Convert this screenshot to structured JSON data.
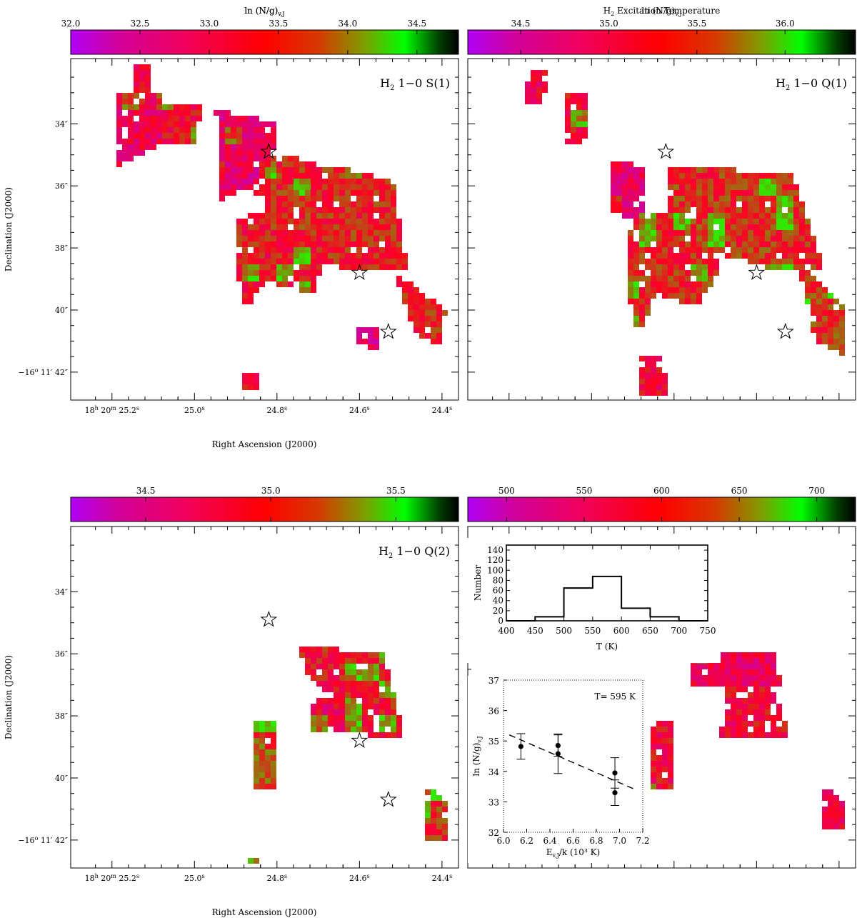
{
  "colors": {
    "scale": [
      "#b000f5",
      "#d0009a",
      "#f2005a",
      "#ff0000",
      "#d63a00",
      "#7ca000",
      "#00ff00",
      "#004000",
      "#000000"
    ],
    "pixel_low": "#c000c8",
    "pixel_mid": "#ff0020",
    "pixel_high": "#30e800",
    "frame": "#000000"
  },
  "axes": {
    "ra_label": "Right Ascension (J2000)",
    "dec_label": "Declination (J2000)",
    "ra_ticks": [
      {
        "h": "18",
        "m": "20",
        "s": "25.2"
      },
      {
        "h": "",
        "m": "",
        "s": "25.0"
      },
      {
        "h": "",
        "m": "",
        "s": "24.8"
      },
      {
        "h": "",
        "m": "",
        "s": "24.6"
      },
      {
        "h": "",
        "m": "",
        "s": "24.4"
      }
    ],
    "dec_ticks": [
      {
        "deg": "",
        "arcmin": "",
        "arcsec": "34″"
      },
      {
        "deg": "",
        "arcmin": "",
        "arcsec": "36″"
      },
      {
        "deg": "",
        "arcmin": "",
        "arcsec": "38″"
      },
      {
        "deg": "",
        "arcmin": "",
        "arcsec": "40″"
      },
      {
        "deg": "−16",
        "arcmin": "11′",
        "arcsec": "42″"
      }
    ]
  },
  "chart_data": [
    {
      "type": "heatmap",
      "label": "H2 1-0 S(1)",
      "label_main": "H",
      "label_sub": "2",
      "label_rest": " 1−0 S(1)",
      "colorbar": {
        "label": "ln (N/g)",
        "label_sub": "v,J",
        "min": 32.0,
        "max": 34.8,
        "ticks": [
          "32.0",
          "32.5",
          "33.0",
          "33.5",
          "34.0",
          "34.5"
        ]
      },
      "stars": [
        {
          "ra": 24.82,
          "dec": 34.9
        },
        {
          "ra": 24.6,
          "dec": 38.8
        },
        {
          "ra": 24.53,
          "dec": 40.7
        }
      ],
      "show_ra_labels": true,
      "show_dec_labels": true
    },
    {
      "type": "heatmap",
      "label": "H2 1-0 Q(1)",
      "label_main": "H",
      "label_sub": "2",
      "label_rest": " 1−0 Q(1)",
      "colorbar": {
        "label": "ln (N/g)",
        "label_sub": "v,J",
        "min": 34.2,
        "max": 36.4,
        "ticks": [
          "34.5",
          "35.0",
          "35.5",
          "36.0"
        ]
      },
      "stars": [
        {
          "ra": 24.82,
          "dec": 34.9
        },
        {
          "ra": 24.6,
          "dec": 38.8
        },
        {
          "ra": 24.53,
          "dec": 40.7
        }
      ],
      "show_ra_labels": false,
      "show_dec_labels": false
    },
    {
      "type": "heatmap",
      "label": "H2 1-0 Q(2)",
      "label_main": "H",
      "label_sub": "2",
      "label_rest": " 1−0 Q(2)",
      "colorbar": {
        "label": "ln (N/g)",
        "label_sub": "v,J",
        "min": 34.2,
        "max": 35.75,
        "ticks": [
          "34.5",
          "35.0",
          "35.5"
        ]
      },
      "stars": [
        {
          "ra": 24.82,
          "dec": 34.9
        },
        {
          "ra": 24.6,
          "dec": 38.8
        },
        {
          "ra": 24.53,
          "dec": 40.7
        }
      ],
      "show_ra_labels": true,
      "show_dec_labels": true
    },
    {
      "type": "heatmap",
      "label": "",
      "colorbar": {
        "label": "H",
        "label_sub": "2",
        "label_rest": " Excitation Temperature",
        "min": 475,
        "max": 725,
        "ticks": [
          "500",
          "550",
          "600",
          "650",
          "700"
        ]
      },
      "stars": [],
      "show_ra_labels": false,
      "show_dec_labels": false,
      "insets": [
        {
          "type": "bar",
          "xlabel": "T (K)",
          "ylabel": "Number",
          "xlim": [
            400,
            750
          ],
          "ylim": [
            0,
            150
          ],
          "xticks": [
            "400",
            "450",
            "500",
            "550",
            "600",
            "650",
            "700",
            "750"
          ],
          "yticks": [
            "0",
            "20",
            "40",
            "60",
            "80",
            "100",
            "120",
            "140"
          ],
          "bins": [
            400,
            450,
            500,
            550,
            600,
            650,
            700,
            750
          ],
          "values": [
            0,
            8,
            65,
            88,
            25,
            8,
            0
          ]
        },
        {
          "type": "scatter",
          "annotation": "T= 595 K",
          "xlabel": "E",
          "xlabel_sub": "v,J",
          "xlabel_rest": "/k (10³ K)",
          "ylabel": "ln (N/g)",
          "ylabel_sub": "v,J",
          "xlim": [
            6.0,
            7.2
          ],
          "ylim": [
            32,
            37
          ],
          "xticks": [
            "6.0",
            "6.2",
            "6.4",
            "6.6",
            "6.8",
            "7.0",
            "7.2"
          ],
          "yticks": [
            "32",
            "33",
            "34",
            "35",
            "36",
            "37"
          ],
          "points": [
            {
              "x": 6.15,
              "y": 34.82,
              "err": 0.42
            },
            {
              "x": 6.47,
              "y": 34.85,
              "err": 0.35
            },
            {
              "x": 6.47,
              "y": 34.58,
              "err": 0.65
            },
            {
              "x": 6.96,
              "y": 33.95,
              "err": 0.5
            },
            {
              "x": 6.96,
              "y": 33.3,
              "err": 0.42
            }
          ],
          "fit": {
            "x": [
              6.05,
              7.15
            ],
            "y": [
              35.2,
              33.38
            ]
          }
        }
      ]
    }
  ]
}
